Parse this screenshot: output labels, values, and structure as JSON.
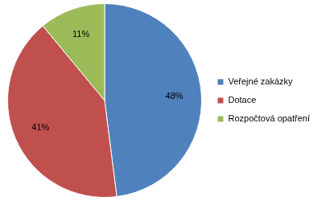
{
  "chart_data": {
    "type": "pie",
    "categories": [
      "Veřejné zakázky",
      "Dotace",
      "Rozpočtová opatření"
    ],
    "values": [
      48,
      41,
      11
    ],
    "value_labels": [
      "48%",
      "41%",
      "11%"
    ],
    "colors": [
      "#4f81bd",
      "#c0504d",
      "#9bbb59"
    ],
    "data_labels": true,
    "legend": "right"
  }
}
